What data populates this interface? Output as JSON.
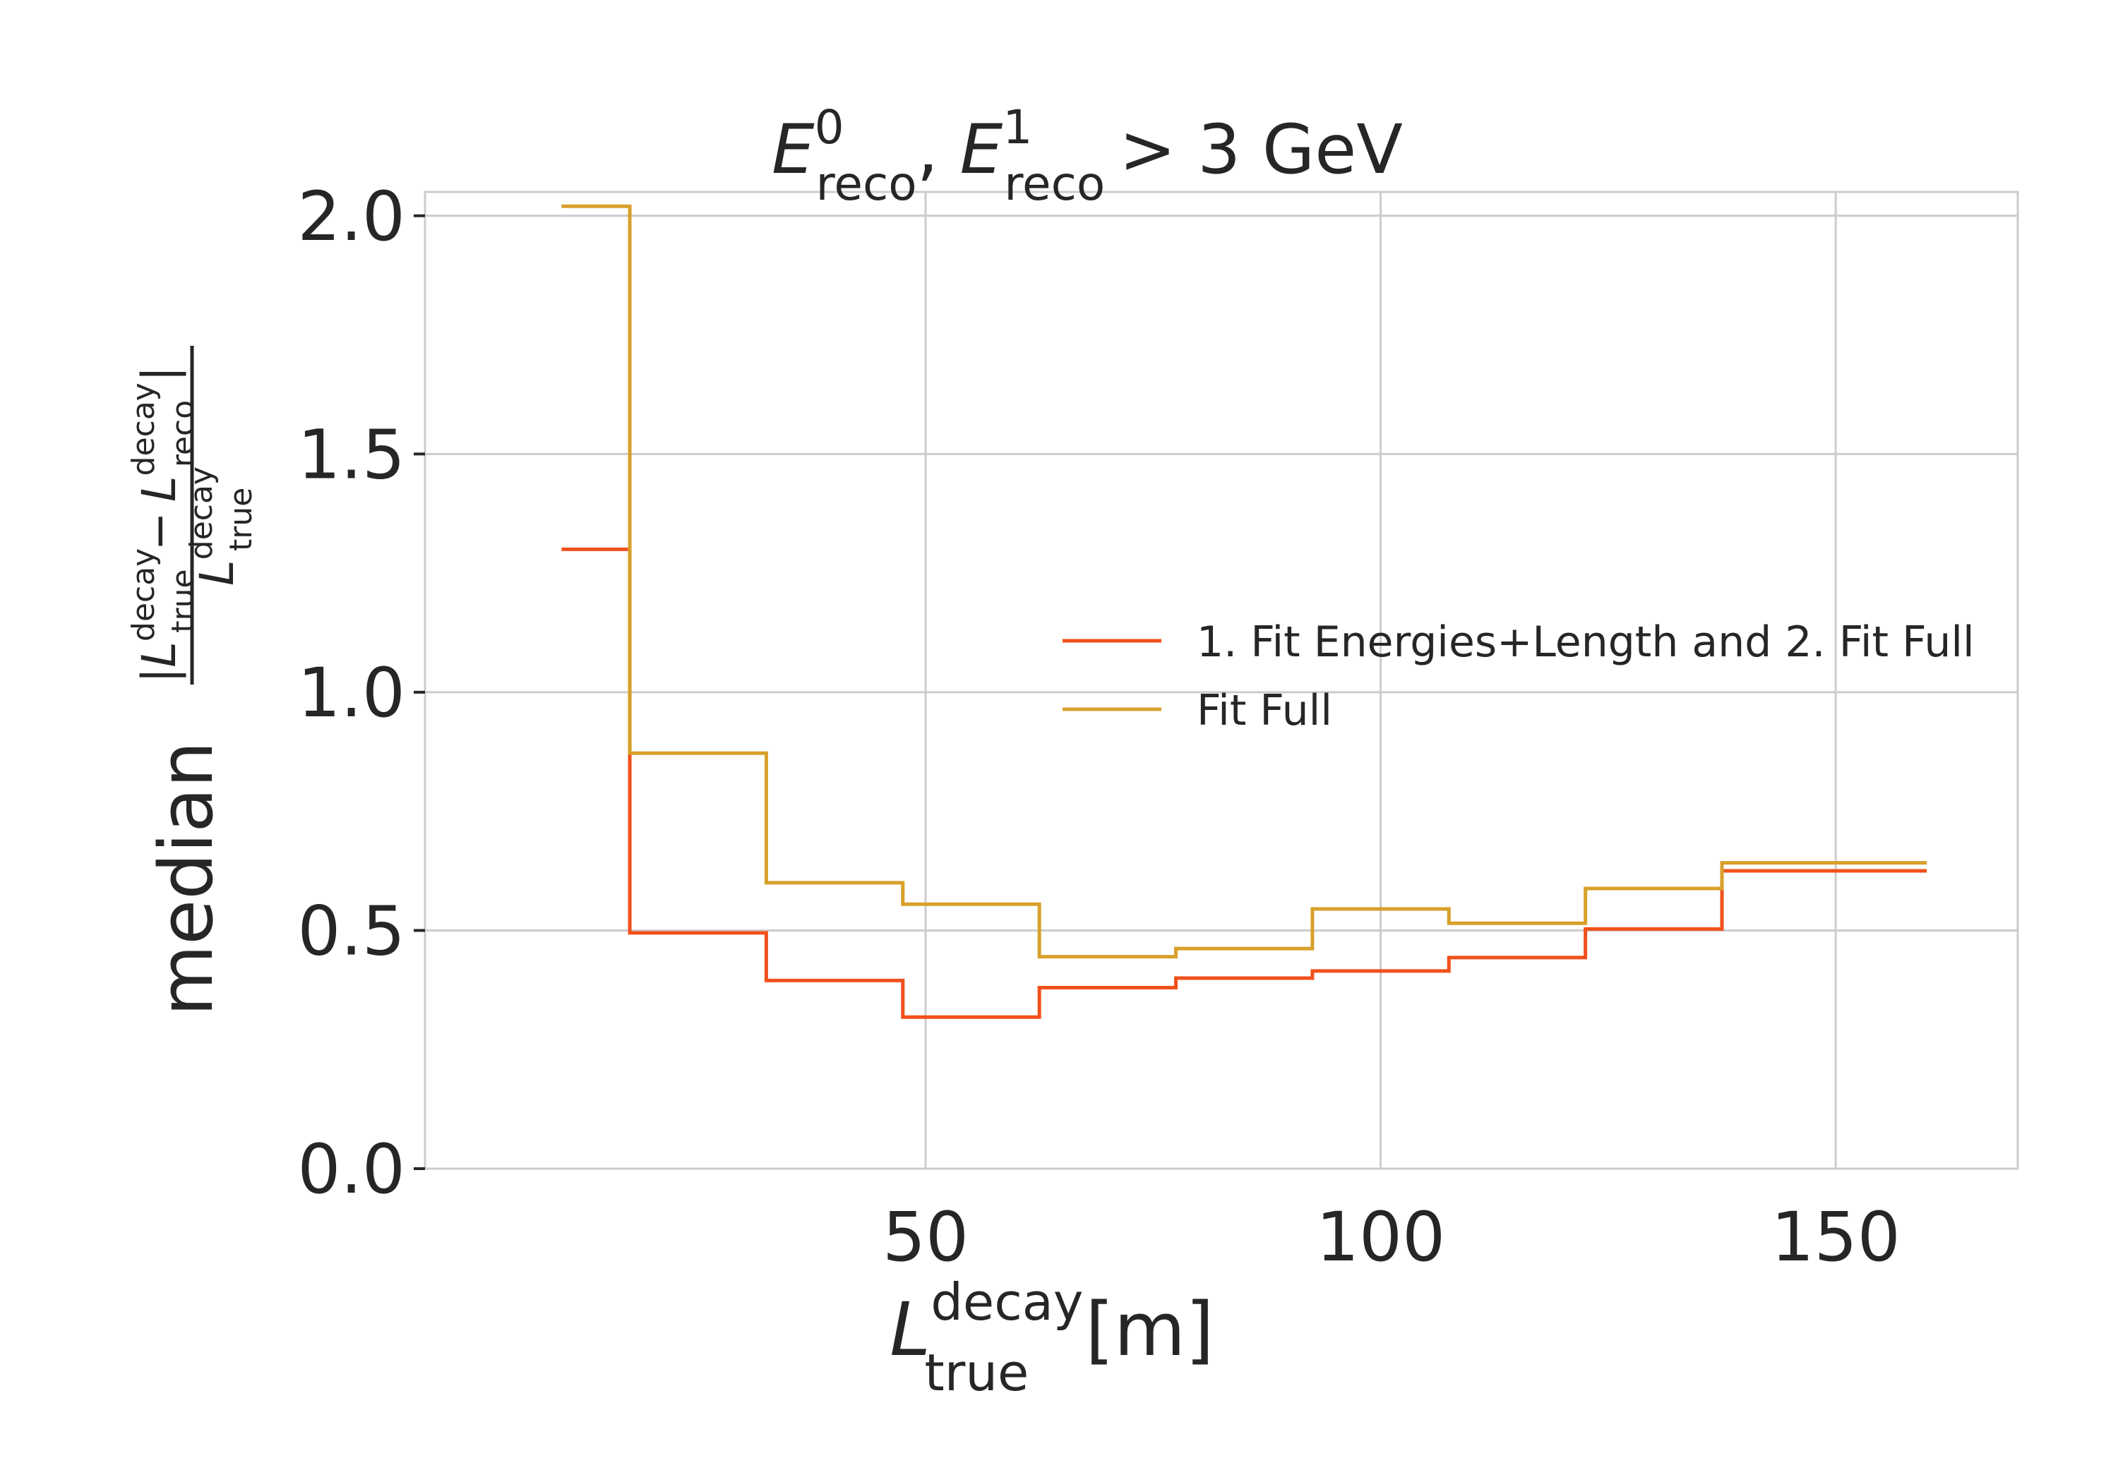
{
  "chart_data": {
    "type": "line",
    "drawstyle": "steps-mid",
    "title": {
      "e0_sup": "0",
      "e_sub": "reco",
      "e1_sup": "1",
      "relation": "> 3 GeV"
    },
    "xlabel": {
      "symbol": "L",
      "sup": "decay",
      "sub": "true",
      "unit": "[m]"
    },
    "ylabel": {
      "prefix": "median",
      "numerator": {
        "open": "|",
        "l1_sup": "decay",
        "l1_sub": "true",
        "minus": "−",
        "l2_sup": "decay",
        "l2_sub": "reco",
        "close": "|"
      },
      "denominator": {
        "sup": "decay",
        "sub": "true"
      }
    },
    "xlim": [
      -5,
      170
    ],
    "ylim": [
      0,
      2.05
    ],
    "xticks": [
      50,
      100,
      150
    ],
    "xtick_labels": [
      "50",
      "100",
      "150"
    ],
    "yticks": [
      0.0,
      0.5,
      1.0,
      1.5,
      2.0
    ],
    "ytick_labels": [
      "0.0",
      "0.5",
      "1.0",
      "1.5",
      "2.0"
    ],
    "grid": true,
    "legend_position": "center-right",
    "x": [
      10,
      25,
      40,
      55,
      70,
      85,
      100,
      115,
      130,
      145,
      160
    ],
    "series": [
      {
        "name": "1. Fit Energies+Length and 2. Fit Full",
        "color": "#f1501b",
        "values": [
          1.3,
          0.495,
          0.395,
          0.318,
          0.38,
          0.4,
          0.415,
          0.443,
          0.503,
          0.625,
          0.625
        ]
      },
      {
        "name": "Fit Full",
        "color": "#d8a02a",
        "values": [
          2.02,
          0.872,
          0.6,
          0.555,
          0.445,
          0.462,
          0.545,
          0.515,
          0.588,
          0.642,
          0.642
        ]
      }
    ]
  }
}
